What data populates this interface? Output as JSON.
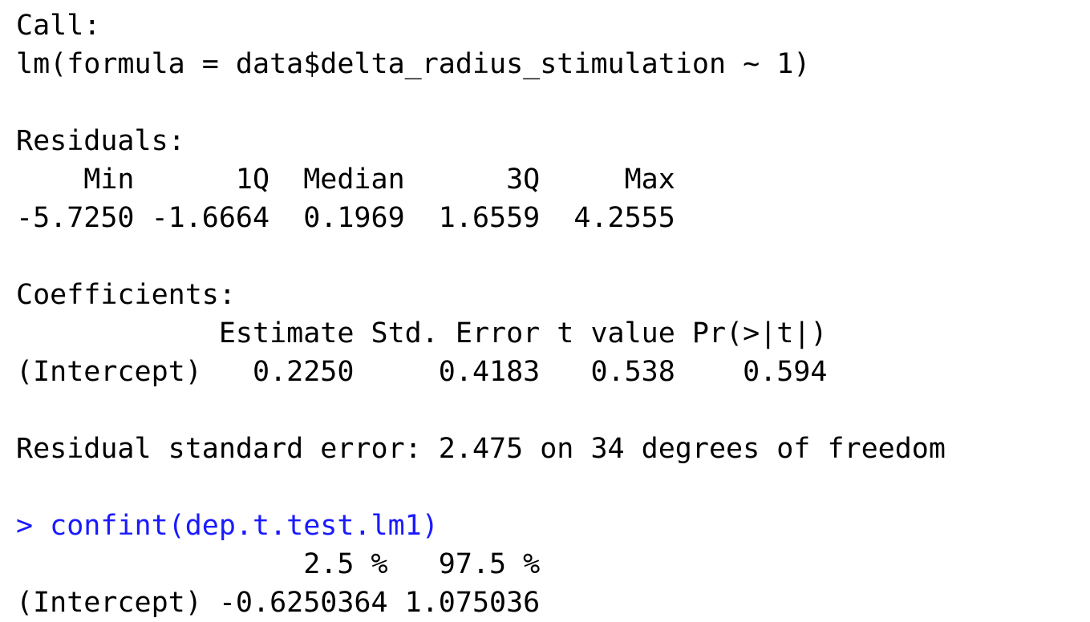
{
  "colors": {
    "output_text": "#000000",
    "command_text": "#1a1aff",
    "background": "#ffffff"
  },
  "console": {
    "call_header": "Call:",
    "call_formula": "lm(formula = data$delta_radius_stimulation ~ 1)",
    "residuals_header": "Residuals:",
    "residuals_columns": "    Min      1Q  Median      3Q     Max ",
    "residuals_values": "-5.7250 -1.6664  0.1969  1.6559  4.2555 ",
    "coefficients_header": "Coefficients:",
    "coefficients_columns": "            Estimate Std. Error t value Pr(>|t|)",
    "coefficients_row": "(Intercept)   0.2250     0.4183   0.538    0.594",
    "residual_se": "Residual standard error: 2.475 on 34 degrees of freedom",
    "command": "> confint(dep.t.test.lm1)",
    "confint_columns": "                 2.5 %   97.5 %",
    "confint_row": "(Intercept) -0.6250364 1.075036"
  }
}
